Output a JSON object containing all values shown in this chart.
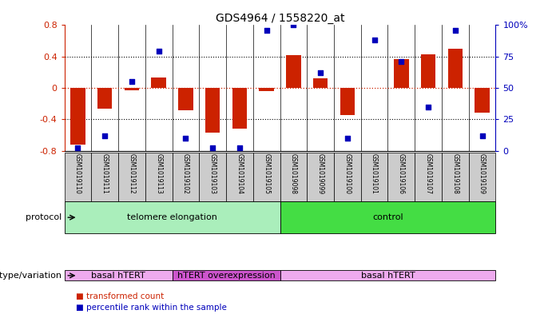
{
  "title": "GDS4964 / 1558220_at",
  "samples": [
    "GSM1019110",
    "GSM1019111",
    "GSM1019112",
    "GSM1019113",
    "GSM1019102",
    "GSM1019103",
    "GSM1019104",
    "GSM1019105",
    "GSM1019098",
    "GSM1019099",
    "GSM1019100",
    "GSM1019101",
    "GSM1019106",
    "GSM1019107",
    "GSM1019108",
    "GSM1019109"
  ],
  "bar_values": [
    -0.72,
    -0.26,
    -0.03,
    0.13,
    -0.28,
    -0.57,
    -0.52,
    -0.04,
    0.42,
    0.12,
    -0.35,
    0.0,
    0.37,
    0.43,
    0.5,
    -0.32
  ],
  "dot_values_pct": [
    2,
    12,
    55,
    79,
    10,
    2,
    2,
    96,
    100,
    62,
    10,
    88,
    71,
    35,
    96,
    12
  ],
  "ylim": [
    -0.8,
    0.8
  ],
  "yticks_left": [
    -0.8,
    -0.4,
    0.0,
    0.4,
    0.8
  ],
  "ytick_labels_left": [
    "-0.8",
    "-0.4",
    "0",
    "0.4",
    "0.8"
  ],
  "ytick_labels_right": [
    "0",
    "25",
    "50",
    "75",
    "100%"
  ],
  "bar_color": "#cc2200",
  "dot_color": "#0000bb",
  "protocol_groups": [
    {
      "label": "telomere elongation",
      "start": 0,
      "end": 8,
      "color": "#aaeebb"
    },
    {
      "label": "control",
      "start": 8,
      "end": 16,
      "color": "#44dd44"
    }
  ],
  "genotype_groups": [
    {
      "label": "basal hTERT",
      "start": 0,
      "end": 4,
      "color": "#eeaaee"
    },
    {
      "label": "hTERT overexpression",
      "start": 4,
      "end": 8,
      "color": "#cc55cc"
    },
    {
      "label": "basal hTERT",
      "start": 8,
      "end": 16,
      "color": "#eeaaee"
    }
  ],
  "protocol_label": "protocol",
  "genotype_label": "genotype/variation",
  "sample_bg_color": "#cccccc",
  "legend_bar_label": "transformed count",
  "legend_dot_label": "percentile rank within the sample"
}
